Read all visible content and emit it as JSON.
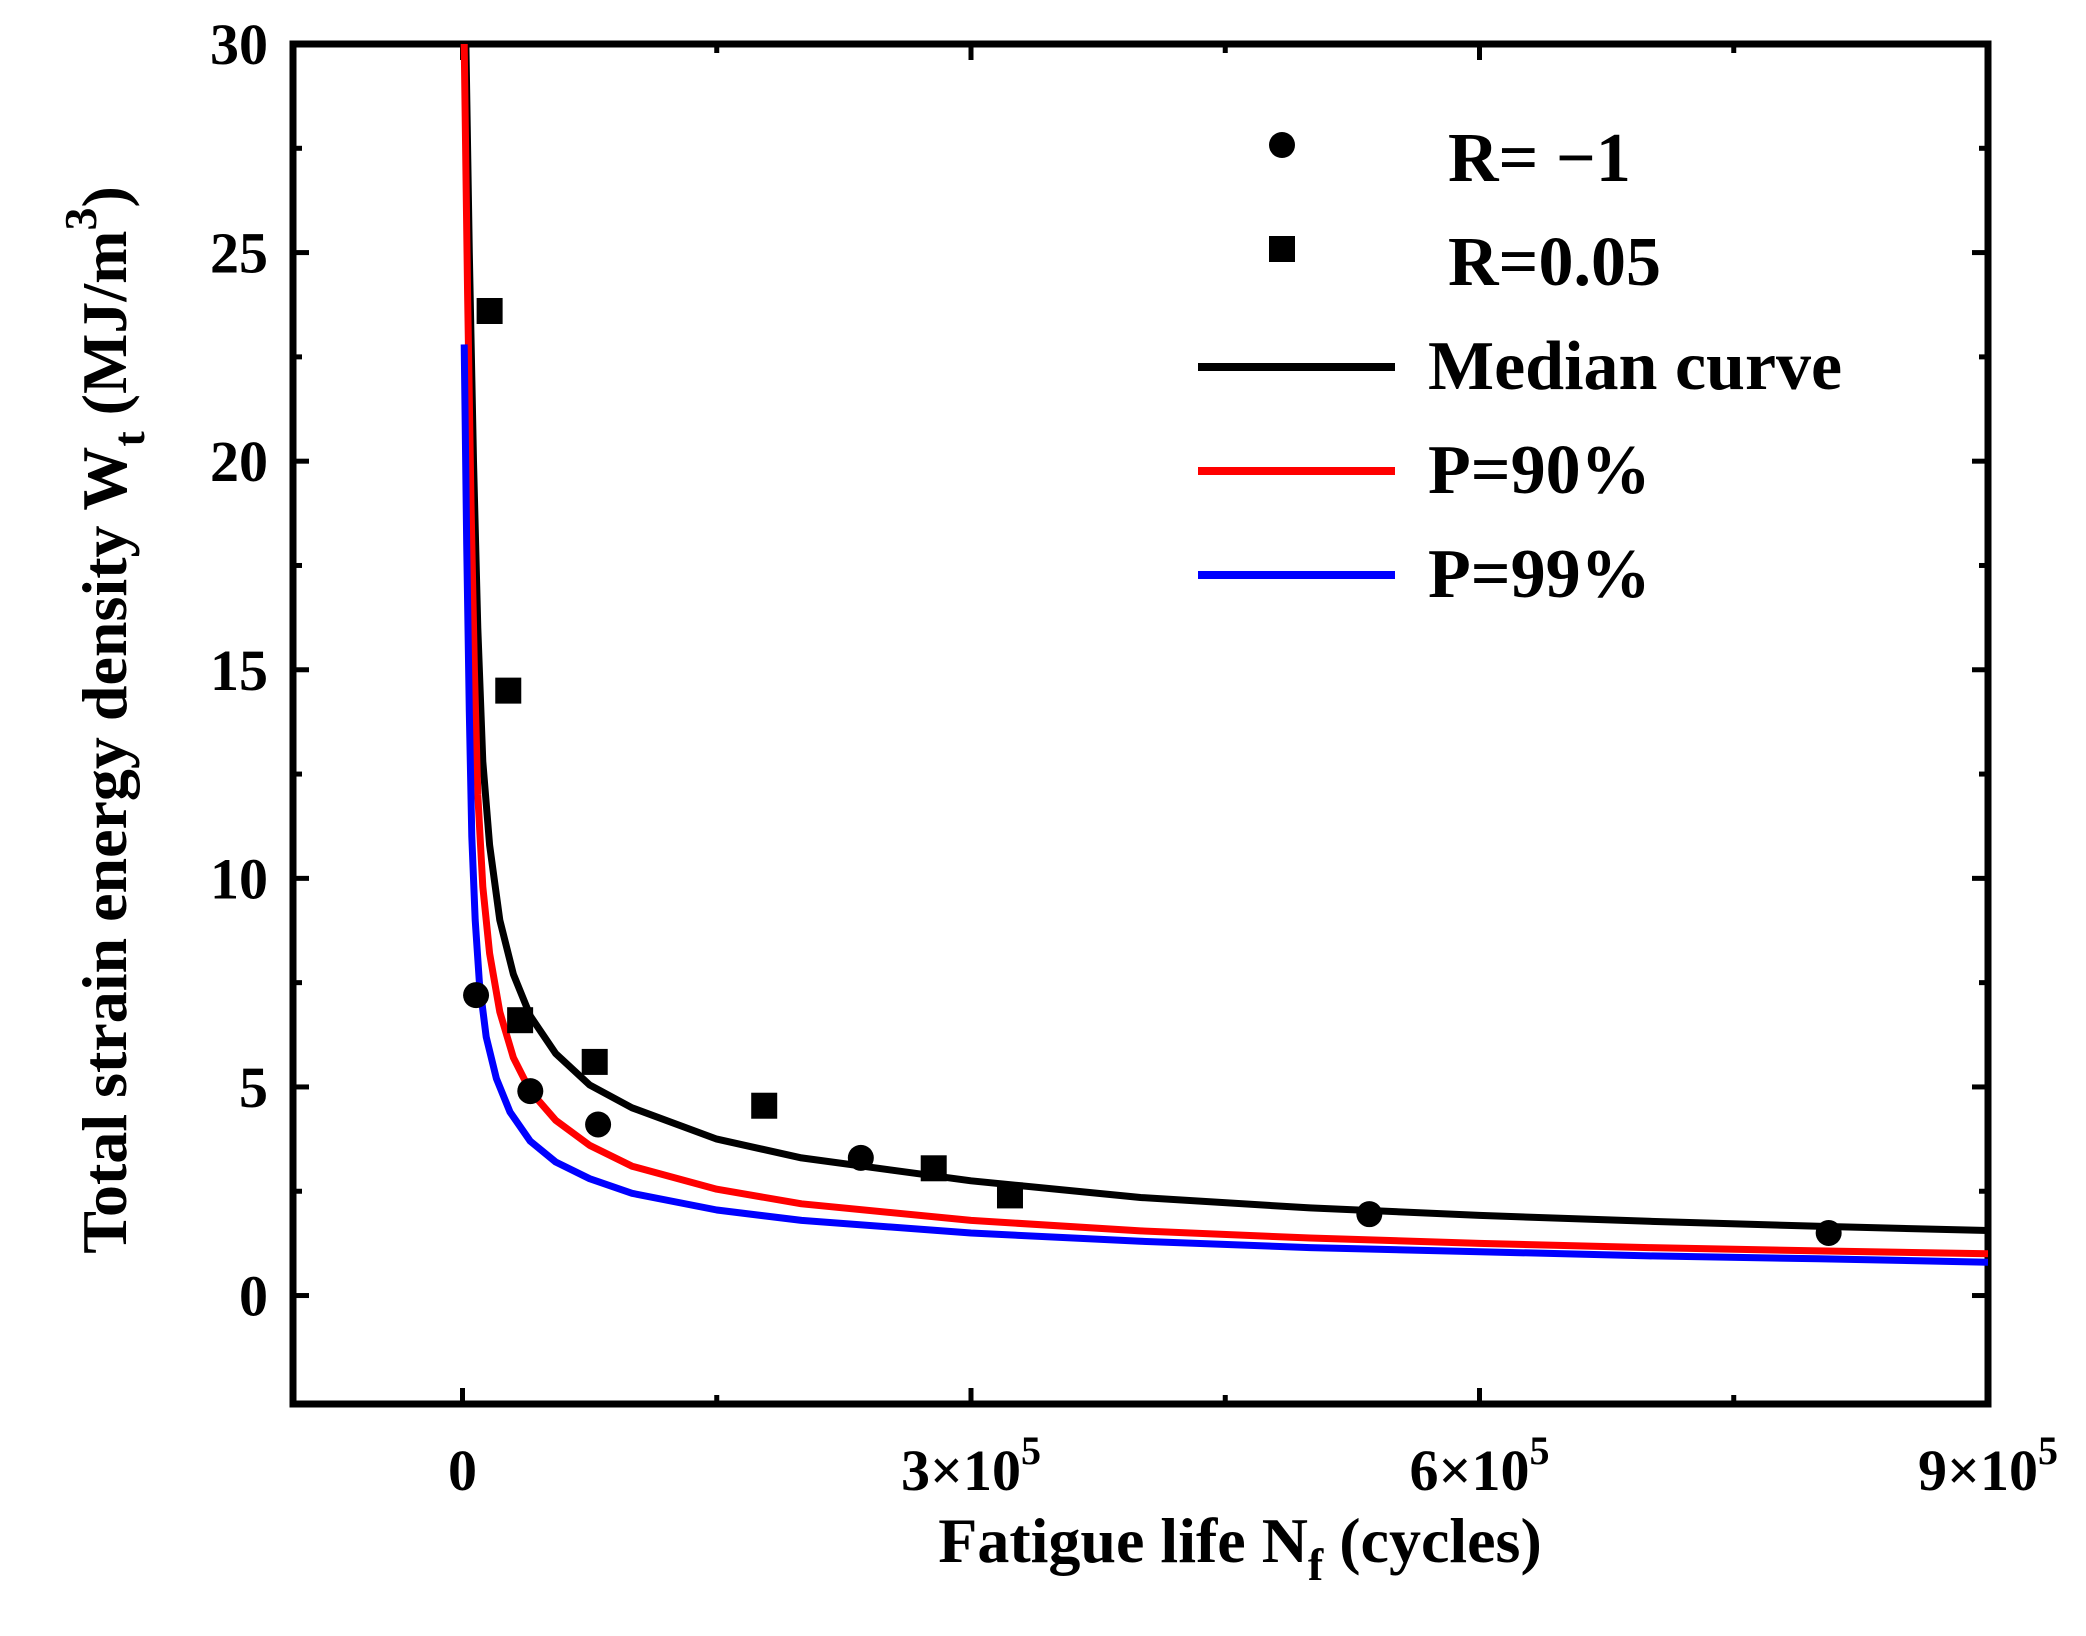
{
  "chart_data": {
    "type": "scatter",
    "title": "",
    "xlabel": {
      "main": "Fatigue life N",
      "sub": "f",
      "rest": " (cycles)"
    },
    "ylabel": {
      "main": "Total strain energy density  W",
      "sub": "t",
      "rest": " (MJ/m",
      "sup": "3",
      "close": ")"
    },
    "xlim": [
      -100000,
      900000
    ],
    "ylim": [
      -2.6,
      30
    ],
    "x_ticks": [
      {
        "value": 0,
        "mantissa": "0",
        "exp": ""
      },
      {
        "value": 300000,
        "mantissa": "3×10",
        "exp": "5"
      },
      {
        "value": 600000,
        "mantissa": "6×10",
        "exp": "5"
      },
      {
        "value": 900000,
        "mantissa": "9×10",
        "exp": "5"
      }
    ],
    "y_ticks": [
      0,
      5,
      10,
      15,
      20,
      25,
      30
    ],
    "series": [
      {
        "name": "R= −1",
        "kind": "scatter",
        "marker": "circle",
        "color": "#000000",
        "points": [
          [
            8000,
            7.2
          ],
          [
            40000,
            4.9
          ],
          [
            80000,
            4.1
          ],
          [
            235000,
            3.3
          ],
          [
            535000,
            1.95
          ],
          [
            806000,
            1.5
          ]
        ]
      },
      {
        "name": "R=0.05",
        "kind": "scatter",
        "marker": "square",
        "color": "#000000",
        "points": [
          [
            16000,
            23.6
          ],
          [
            27000,
            14.5
          ],
          [
            34000,
            6.6
          ],
          [
            78000,
            5.6
          ],
          [
            178000,
            4.55
          ],
          [
            278000,
            3.05
          ],
          [
            323000,
            2.4
          ]
        ]
      },
      {
        "name": "Median curve",
        "kind": "line",
        "color": "#000000",
        "points": [
          [
            2000,
            30
          ],
          [
            4000,
            25
          ],
          [
            6500,
            20
          ],
          [
            9000,
            16
          ],
          [
            12000,
            12.8
          ],
          [
            16000,
            10.8
          ],
          [
            22000,
            9.0
          ],
          [
            30000,
            7.7
          ],
          [
            40000,
            6.7
          ],
          [
            55000,
            5.8
          ],
          [
            75000,
            5.05
          ],
          [
            100000,
            4.5
          ],
          [
            150000,
            3.75
          ],
          [
            200000,
            3.3
          ],
          [
            300000,
            2.75
          ],
          [
            400000,
            2.35
          ],
          [
            500000,
            2.1
          ],
          [
            600000,
            1.92
          ],
          [
            700000,
            1.78
          ],
          [
            800000,
            1.66
          ],
          [
            900000,
            1.56
          ]
        ]
      },
      {
        "name": "P=90%",
        "kind": "line",
        "color": "#ff0000",
        "points": [
          [
            1000,
            30
          ],
          [
            3000,
            24
          ],
          [
            5000,
            19
          ],
          [
            7000,
            15
          ],
          [
            9000,
            12
          ],
          [
            12000,
            9.8
          ],
          [
            16000,
            8.2
          ],
          [
            22000,
            6.8
          ],
          [
            30000,
            5.7
          ],
          [
            40000,
            4.9
          ],
          [
            55000,
            4.2
          ],
          [
            75000,
            3.6
          ],
          [
            100000,
            3.1
          ],
          [
            150000,
            2.55
          ],
          [
            200000,
            2.2
          ],
          [
            300000,
            1.8
          ],
          [
            400000,
            1.55
          ],
          [
            500000,
            1.38
          ],
          [
            600000,
            1.25
          ],
          [
            700000,
            1.15
          ],
          [
            800000,
            1.07
          ],
          [
            900000,
            1.0
          ]
        ]
      },
      {
        "name": "P=99%",
        "kind": "line",
        "color": "#0000ff",
        "points": [
          [
            1000,
            22.8
          ],
          [
            2500,
            18
          ],
          [
            4000,
            14
          ],
          [
            5500,
            11
          ],
          [
            7500,
            9.0
          ],
          [
            10000,
            7.5
          ],
          [
            14000,
            6.2
          ],
          [
            20000,
            5.2
          ],
          [
            28000,
            4.4
          ],
          [
            40000,
            3.7
          ],
          [
            55000,
            3.2
          ],
          [
            75000,
            2.8
          ],
          [
            100000,
            2.45
          ],
          [
            150000,
            2.05
          ],
          [
            200000,
            1.8
          ],
          [
            300000,
            1.5
          ],
          [
            400000,
            1.3
          ],
          [
            500000,
            1.15
          ],
          [
            600000,
            1.05
          ],
          [
            700000,
            0.95
          ],
          [
            800000,
            0.88
          ],
          [
            900000,
            0.8
          ]
        ]
      }
    ],
    "legend": {
      "position": "top-right"
    }
  }
}
